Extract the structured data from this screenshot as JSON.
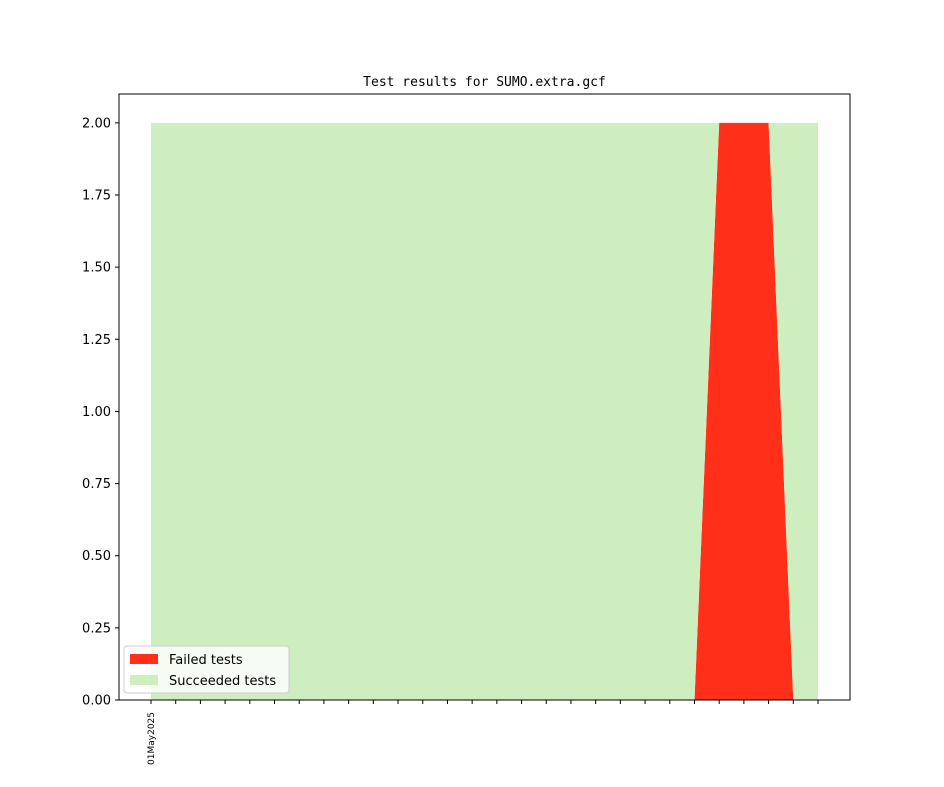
{
  "chart_data": {
    "type": "area",
    "title": "Test results for SUMO.extra.gcf",
    "xlabel": "",
    "ylabel": "",
    "ylim": [
      0,
      2.1
    ],
    "y_ticks": [
      "0.00",
      "0.25",
      "0.50",
      "0.75",
      "1.00",
      "1.25",
      "1.50",
      "1.75",
      "2.00"
    ],
    "x_tick_count": 28,
    "x_labels": [
      {
        "index": 0,
        "text": "01May2025"
      }
    ],
    "stacked": true,
    "x": [
      0,
      1,
      2,
      3,
      4,
      5,
      6,
      7,
      8,
      9,
      10,
      11,
      12,
      13,
      14,
      15,
      16,
      17,
      18,
      19,
      20,
      21,
      22,
      23,
      24,
      25,
      26,
      27
    ],
    "series": [
      {
        "name": "Failed tests",
        "color": "#ff2f1a",
        "values": [
          0,
          0,
          0,
          0,
          0,
          0,
          0,
          0,
          0,
          0,
          0,
          0,
          0,
          0,
          0,
          0,
          0,
          0,
          0,
          0,
          0,
          0,
          0,
          2,
          2,
          2,
          0,
          0
        ]
      },
      {
        "name": "Succeeded tests",
        "color": "#cfeec0",
        "values": [
          2,
          2,
          2,
          2,
          2,
          2,
          2,
          2,
          2,
          2,
          2,
          2,
          2,
          2,
          2,
          2,
          2,
          2,
          2,
          2,
          2,
          2,
          2,
          0,
          0,
          0,
          2,
          2
        ]
      }
    ],
    "grid": false,
    "legend_position": "lower-left"
  }
}
